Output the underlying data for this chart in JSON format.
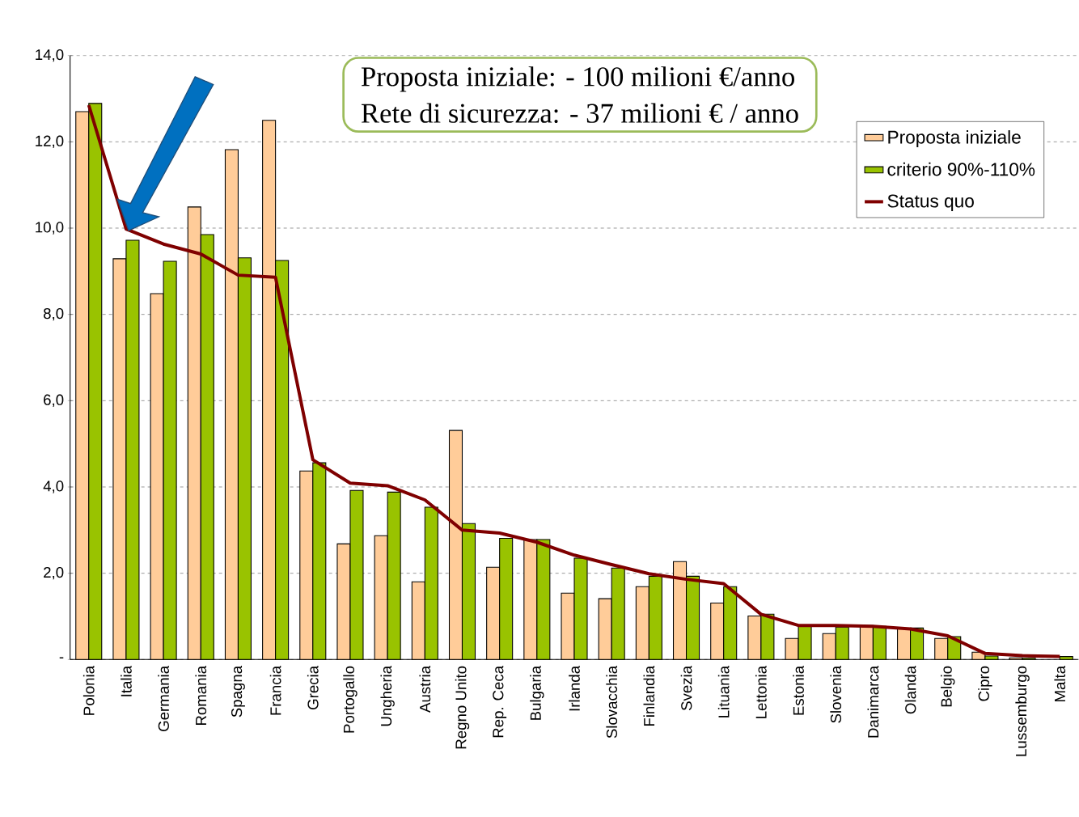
{
  "chart_data": {
    "type": "bar",
    "annotations": [
      "Proposta iniziale: - 100 milioni €/anno",
      "Rete di sicurezza: - 37 milioni € / anno"
    ],
    "categories": [
      "Polonia",
      "Italia",
      "Germania",
      "Romania",
      "Spagna",
      "Francia",
      "Grecia",
      "Portogallo",
      "Ungheria",
      "Austria",
      "Regno Unito",
      "Rep. Ceca",
      "Bulgaria",
      "Irlanda",
      "Slovacchia",
      "Finlandia",
      "Svezia",
      "Lituania",
      "Lettonia",
      "Estonia",
      "Slovenia",
      "Danimarca",
      "Olanda",
      "Belgio",
      "Cipro",
      "Lussemburgo",
      "Malta"
    ],
    "series": [
      {
        "name": "Proposta iniziale",
        "color": "#ffcc99",
        "values": [
          12.7,
          9.29,
          8.48,
          10.49,
          11.82,
          12.5,
          4.37,
          2.68,
          2.87,
          1.8,
          5.31,
          2.14,
          2.78,
          1.54,
          1.41,
          1.69,
          2.27,
          1.31,
          1.01,
          0.49,
          0.6,
          0.79,
          0.71,
          0.49,
          0.17,
          0.04,
          null
        ]
      },
      {
        "name": "criterio 90%-110%",
        "color": "#99c300",
        "values": [
          12.89,
          9.72,
          9.23,
          9.85,
          9.31,
          9.25,
          4.56,
          3.92,
          3.88,
          3.53,
          3.15,
          2.81,
          2.78,
          2.35,
          2.12,
          1.93,
          1.93,
          1.69,
          1.05,
          0.77,
          0.75,
          0.77,
          0.73,
          0.53,
          0.08,
          0.03,
          0.07
        ]
      },
      {
        "name": "Status quo",
        "type": "line",
        "color": "#7f0000",
        "values": [
          12.85,
          9.98,
          9.63,
          9.4,
          8.91,
          8.86,
          4.63,
          4.09,
          4.03,
          3.7,
          3.0,
          2.93,
          2.72,
          2.42,
          2.2,
          1.99,
          1.86,
          1.76,
          1.05,
          0.79,
          0.79,
          0.77,
          0.71,
          0.55,
          0.14,
          0.09,
          0.07
        ]
      }
    ],
    "ylim": [
      0,
      14
    ],
    "yticks": [
      {
        "value": 0,
        "label": "-"
      },
      {
        "value": 2,
        "label": "2,0"
      },
      {
        "value": 4,
        "label": "4,0"
      },
      {
        "value": 6,
        "label": "6,0"
      },
      {
        "value": 8,
        "label": "8,0"
      },
      {
        "value": 10,
        "label": "10,0"
      },
      {
        "value": 12,
        "label": "12,0"
      },
      {
        "value": 14,
        "label": "14,0"
      }
    ],
    "grid": "y",
    "legend": "top right",
    "line_style": "solid"
  }
}
